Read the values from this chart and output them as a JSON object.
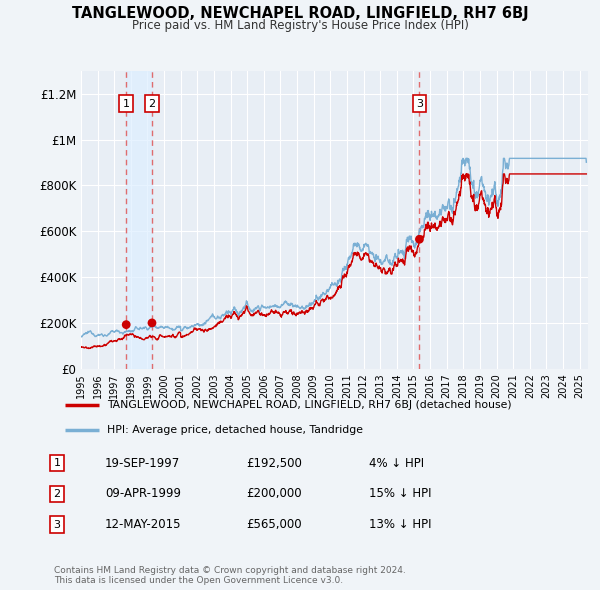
{
  "title": "TANGLEWOOD, NEWCHAPEL ROAD, LINGFIELD, RH7 6BJ",
  "subtitle": "Price paid vs. HM Land Registry's House Price Index (HPI)",
  "property_label": "TANGLEWOOD, NEWCHAPEL ROAD, LINGFIELD, RH7 6BJ (detached house)",
  "hpi_label": "HPI: Average price, detached house, Tandridge",
  "sale_events": [
    {
      "num": 1,
      "date": "19-SEP-1997",
      "date_val": 1997.72,
      "price": 192500,
      "pct": "4%"
    },
    {
      "num": 2,
      "date": "09-APR-1999",
      "date_val": 1999.27,
      "price": 200000,
      "pct": "15%"
    },
    {
      "num": 3,
      "date": "12-MAY-2015",
      "date_val": 2015.36,
      "price": 565000,
      "pct": "13%"
    }
  ],
  "property_color": "#cc0000",
  "hpi_color": "#7aafd4",
  "shade_color": "#ddeeff",
  "background_color": "#f0f4f8",
  "plot_bg_color": "#e8eef5",
  "grid_color": "#ffffff",
  "ylim": [
    0,
    1300000
  ],
  "xlim_start": 1995.0,
  "xlim_end": 2025.5,
  "footer_text": "Contains HM Land Registry data © Crown copyright and database right 2024.\nThis data is licensed under the Open Government Licence v3.0.",
  "yticks": [
    0,
    200000,
    400000,
    600000,
    800000,
    1000000,
    1200000
  ],
  "ytick_labels": [
    "£0",
    "£200K",
    "£400K",
    "£600K",
    "£800K",
    "£1M",
    "£1.2M"
  ]
}
